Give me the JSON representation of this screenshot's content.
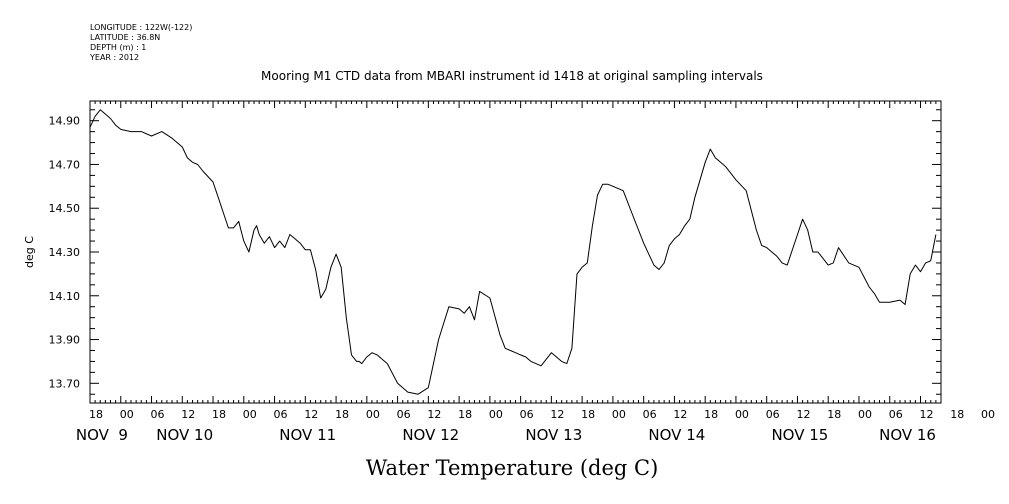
{
  "header": {
    "lines": [
      "LONGITUDE : 122W(-122)",
      "LATITUDE : 36.8N",
      "DEPTH (m) : 1",
      "YEAR : 2012"
    ]
  },
  "chart_data": {
    "type": "line",
    "title": "Mooring M1 CTD data from MBARI instrument id 1418 at original sampling intervals",
    "xlabel": "Water Temperature (deg C)",
    "ylabel": "deg C",
    "x_unit": "hours since 2012-11-08 18:00",
    "xlim": [
      0,
      166
    ],
    "ylim": [
      13.61,
      14.99
    ],
    "y_ticks": [
      "13.70",
      "13.90",
      "14.10",
      "14.30",
      "14.50",
      "14.70",
      "14.90"
    ],
    "x_hour_labels": [
      "18",
      "00",
      "06",
      "12",
      "18",
      "00",
      "06",
      "12",
      "18",
      "00",
      "06",
      "12",
      "18",
      "00",
      "06",
      "12",
      "18",
      "00",
      "06",
      "12",
      "18",
      "00",
      "06",
      "12",
      "18",
      "00",
      "06",
      "12",
      "18",
      "00",
      "06",
      "12"
    ],
    "x_day_labels": [
      "NOV",
      "9",
      "NOV 10",
      "NOV 11",
      "NOV 12",
      "NOV 13",
      "NOV 14",
      "NOV 15",
      "NOV 16"
    ],
    "grid": false,
    "series": [
      {
        "name": "",
        "x": [
          0,
          1,
          2,
          3,
          4,
          5,
          6,
          8,
          10,
          12,
          14,
          16,
          18,
          19,
          20,
          21,
          22,
          24,
          25,
          26,
          27,
          28,
          29,
          30,
          31,
          32,
          32.5,
          33,
          34,
          35,
          36,
          37,
          38,
          39,
          40,
          41,
          42,
          43,
          44,
          45,
          46,
          47,
          48,
          49,
          50,
          51,
          52,
          52.5,
          53,
          54,
          55,
          56,
          58,
          60,
          62,
          64,
          66,
          68,
          70,
          72,
          73,
          74,
          75,
          76,
          78,
          80,
          81,
          82,
          83,
          84,
          85,
          86,
          88,
          90,
          91,
          92,
          93,
          94,
          95,
          96,
          97,
          98,
          99,
          100,
          101,
          102,
          104,
          106,
          108,
          109,
          110,
          111,
          112,
          113,
          114,
          115,
          116,
          117,
          118,
          120,
          121,
          122,
          123,
          124,
          126,
          128,
          130,
          131,
          132,
          133,
          134,
          135,
          136,
          138,
          139,
          140,
          141,
          142,
          144,
          145,
          146,
          148,
          150,
          152,
          153,
          154,
          156,
          158,
          159,
          160,
          161,
          162,
          163,
          164,
          165
        ],
        "y": [
          14.87,
          14.92,
          14.95,
          14.93,
          14.91,
          14.88,
          14.86,
          14.85,
          14.85,
          14.83,
          14.85,
          14.82,
          14.78,
          14.73,
          14.71,
          14.7,
          14.67,
          14.62,
          14.55,
          14.48,
          14.41,
          14.41,
          14.44,
          14.35,
          14.3,
          14.4,
          14.42,
          14.38,
          14.34,
          14.37,
          14.32,
          14.35,
          14.32,
          14.38,
          14.36,
          14.34,
          14.31,
          14.31,
          14.22,
          14.09,
          14.13,
          14.23,
          14.29,
          14.23,
          14.0,
          13.83,
          13.8,
          13.8,
          13.79,
          13.82,
          13.84,
          13.83,
          13.79,
          13.7,
          13.66,
          13.65,
          13.68,
          13.9,
          14.05,
          14.04,
          14.02,
          14.05,
          13.99,
          14.12,
          14.09,
          13.92,
          13.86,
          13.85,
          13.84,
          13.83,
          13.82,
          13.8,
          13.78,
          13.84,
          13.82,
          13.8,
          13.79,
          13.86,
          14.2,
          14.23,
          14.25,
          14.42,
          14.56,
          14.61,
          14.61,
          14.6,
          14.58,
          14.46,
          14.34,
          14.29,
          14.24,
          14.22,
          14.25,
          14.33,
          14.36,
          14.38,
          14.42,
          14.45,
          14.55,
          14.71,
          14.77,
          14.73,
          14.71,
          14.69,
          14.63,
          14.58,
          14.4,
          14.33,
          14.32,
          14.3,
          14.28,
          14.25,
          14.24,
          14.38,
          14.45,
          14.4,
          14.3,
          14.3,
          14.24,
          14.25,
          14.32,
          14.25,
          14.23,
          14.14,
          14.11,
          14.07,
          14.07,
          14.08,
          14.06,
          14.2,
          14.24,
          14.21,
          14.25,
          14.26,
          14.38
        ]
      }
    ]
  }
}
